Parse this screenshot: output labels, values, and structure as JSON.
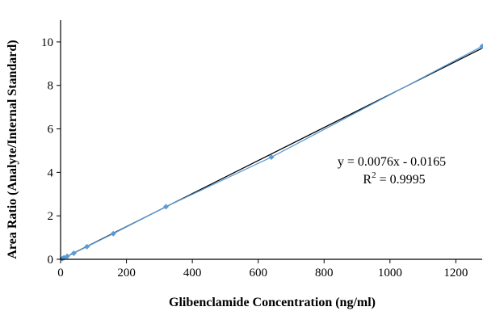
{
  "chart_data": {
    "type": "scatter",
    "title": "",
    "xlabel": "Glibenclamide Concentration (ng/ml)",
    "ylabel": "Area Ratio (Analyte/Internal Standard)",
    "xlim": [
      0,
      1280
    ],
    "ylim": [
      0,
      11
    ],
    "xticks": [
      0,
      200,
      400,
      600,
      800,
      1000,
      1200
    ],
    "yticks": [
      0,
      2,
      4,
      6,
      8,
      10
    ],
    "grid": false,
    "colors": {
      "series": "#5b9bd5",
      "trendline": "#000000"
    },
    "series": [
      {
        "x": [
          5,
          10,
          20,
          40,
          80,
          160,
          320,
          640,
          1280
        ],
        "y": [
          0.03,
          0.07,
          0.14,
          0.28,
          0.58,
          1.18,
          2.42,
          4.7,
          9.8
        ]
      }
    ],
    "trendline": {
      "slope": 0.0076,
      "intercept": -0.0165
    },
    "annotation": {
      "equation": "y = 0.0076x - 0.0165",
      "r2_prefix": "R",
      "r2_sup": "2",
      "r2_value": " = 0.9995"
    }
  }
}
